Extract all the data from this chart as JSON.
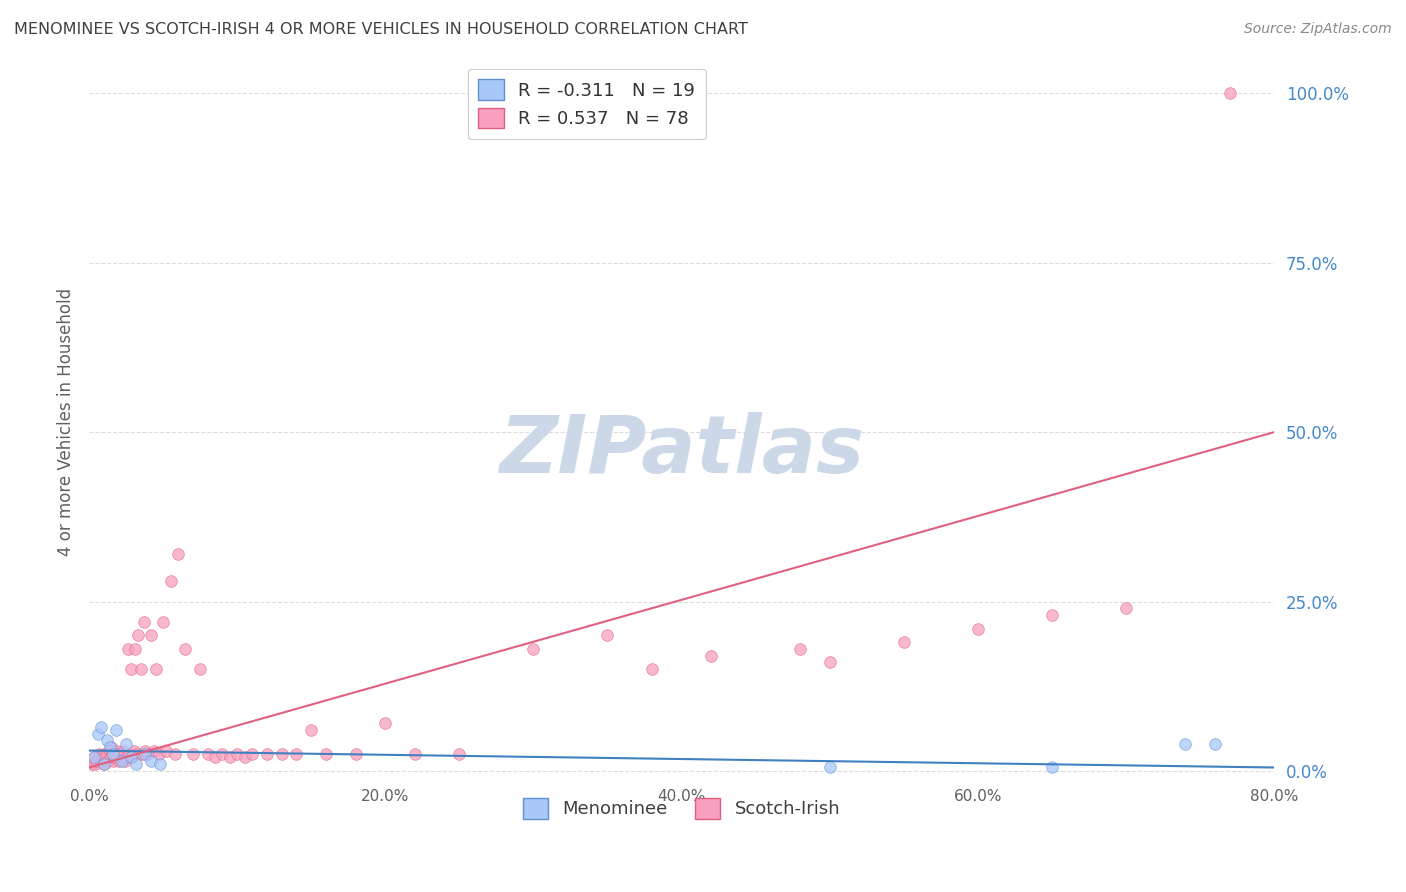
{
  "title": "MENOMINEE VS SCOTCH-IRISH 4 OR MORE VEHICLES IN HOUSEHOLD CORRELATION CHART",
  "source": "Source: ZipAtlas.com",
  "ylabel": "4 or more Vehicles in Household",
  "xlim": [
    0.0,
    0.8
  ],
  "ylim": [
    -0.02,
    1.05
  ],
  "xticks": [
    0.0,
    0.2,
    0.4,
    0.6,
    0.8
  ],
  "xticklabels": [
    "0.0%",
    "20.0%",
    "40.0%",
    "60.0%",
    "80.0%"
  ],
  "yticks_right": [
    0.0,
    0.25,
    0.5,
    0.75,
    1.0
  ],
  "yticklabels_right": [
    "0.0%",
    "25.0%",
    "50.0%",
    "75.0%",
    "100.0%"
  ],
  "watermark": "ZIPatlas",
  "legend_entries": [
    {
      "label": "R = -0.311   N = 19",
      "color": "#a8c8fa",
      "edgecolor": "#6090d0"
    },
    {
      "label": "R = 0.537   N = 78",
      "color": "#f9a0c0",
      "edgecolor": "#e06080"
    }
  ],
  "menominee_x": [
    0.003,
    0.006,
    0.008,
    0.01,
    0.012,
    0.014,
    0.016,
    0.018,
    0.022,
    0.025,
    0.028,
    0.032,
    0.038,
    0.042,
    0.048,
    0.5,
    0.65,
    0.74,
    0.76
  ],
  "menominee_y": [
    0.02,
    0.055,
    0.065,
    0.01,
    0.045,
    0.035,
    0.025,
    0.06,
    0.015,
    0.04,
    0.02,
    0.01,
    0.025,
    0.015,
    0.01,
    0.005,
    0.005,
    0.04,
    0.04
  ],
  "scotchirish_x": [
    0.002,
    0.003,
    0.004,
    0.005,
    0.006,
    0.007,
    0.008,
    0.009,
    0.01,
    0.01,
    0.011,
    0.012,
    0.013,
    0.014,
    0.015,
    0.015,
    0.016,
    0.017,
    0.018,
    0.019,
    0.02,
    0.021,
    0.022,
    0.023,
    0.024,
    0.025,
    0.026,
    0.027,
    0.028,
    0.029,
    0.03,
    0.031,
    0.032,
    0.033,
    0.035,
    0.036,
    0.037,
    0.038,
    0.04,
    0.042,
    0.044,
    0.045,
    0.047,
    0.05,
    0.052,
    0.055,
    0.058,
    0.06,
    0.065,
    0.07,
    0.075,
    0.08,
    0.085,
    0.09,
    0.095,
    0.1,
    0.105,
    0.11,
    0.12,
    0.13,
    0.14,
    0.15,
    0.16,
    0.18,
    0.2,
    0.22,
    0.25,
    0.3,
    0.35,
    0.38,
    0.42,
    0.48,
    0.5,
    0.55,
    0.6,
    0.65,
    0.7,
    0.77
  ],
  "scotchirish_y": [
    0.01,
    0.02,
    0.01,
    0.015,
    0.02,
    0.025,
    0.015,
    0.02,
    0.01,
    0.025,
    0.02,
    0.025,
    0.015,
    0.03,
    0.02,
    0.035,
    0.015,
    0.02,
    0.025,
    0.03,
    0.015,
    0.025,
    0.02,
    0.03,
    0.015,
    0.02,
    0.18,
    0.025,
    0.15,
    0.02,
    0.03,
    0.18,
    0.025,
    0.2,
    0.15,
    0.025,
    0.22,
    0.03,
    0.025,
    0.2,
    0.03,
    0.15,
    0.025,
    0.22,
    0.03,
    0.28,
    0.025,
    0.32,
    0.18,
    0.025,
    0.15,
    0.025,
    0.02,
    0.025,
    0.02,
    0.025,
    0.02,
    0.025,
    0.025,
    0.025,
    0.025,
    0.06,
    0.025,
    0.025,
    0.07,
    0.025,
    0.025,
    0.18,
    0.2,
    0.15,
    0.17,
    0.18,
    0.16,
    0.19,
    0.21,
    0.23,
    0.24,
    1.0
  ],
  "menominee_color": "#a8c8fa",
  "menominee_edge": "#6090d0",
  "scotchirish_color": "#f9a0c0",
  "scotchirish_edge": "#e06080",
  "marker_size": 70,
  "marker_alpha": 0.75,
  "menominee_line": {
    "x": [
      0.0,
      0.8
    ],
    "y": [
      0.03,
      0.005
    ],
    "color": "#4080c0",
    "lw": 1.5
  },
  "scotchirish_line": {
    "x": [
      0.0,
      0.8
    ],
    "y": [
      0.005,
      0.5
    ],
    "color": "#e06080",
    "lw": 1.5
  },
  "background_color": "#ffffff",
  "grid_color": "#dddddd",
  "title_color": "#404040",
  "axis_label_color": "#606060",
  "right_tick_color": "#4488cc",
  "watermark_color": "#ccd8e8",
  "watermark_fontsize": 58
}
